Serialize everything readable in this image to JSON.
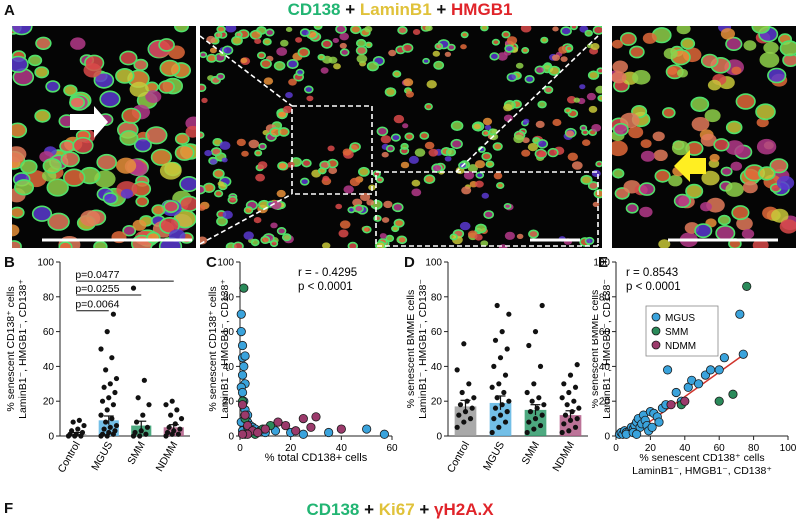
{
  "panel_labels": {
    "A": "A",
    "B": "B",
    "C": "C",
    "D": "D",
    "E": "E",
    "F": "F"
  },
  "title_A": [
    {
      "text": "CD138",
      "color": "#22b573"
    },
    {
      "text": " + ",
      "color": "#111111"
    },
    {
      "text": "LaminB1",
      "color": "#e0c23a"
    },
    {
      "text": " + ",
      "color": "#111111"
    },
    {
      "text": "HMGB1",
      "color": "#e0242a"
    }
  ],
  "title_F": [
    {
      "text": "CD138",
      "color": "#22b573"
    },
    {
      "text": " + ",
      "color": "#111111"
    },
    {
      "text": "Ki67",
      "color": "#e0c23a"
    },
    {
      "text": " + ",
      "color": "#111111"
    },
    {
      "text": "γH2A.X",
      "color": "#e0242a"
    }
  ],
  "colors": {
    "control": "#3a3a3a",
    "mgus": "#3aa3dc",
    "smm": "#2a8a5a",
    "ndmm": "#9b3a6b",
    "fit_line": "#d0342c",
    "bar_control": "#9a9a9a",
    "bar_mgus": "#5ab4e3",
    "bar_smm": "#2e9a6a",
    "bar_ndmm": "#b05a86"
  },
  "chart_data": [
    {
      "id": "B",
      "type": "bar",
      "categories": [
        "Control",
        "MGUS",
        "SMM",
        "NDMM"
      ],
      "means": [
        1,
        9,
        6,
        5
      ],
      "errors": [
        1,
        2.5,
        2.5,
        1.5
      ],
      "points": [
        [
          0,
          0,
          0,
          1,
          1,
          2,
          3,
          4,
          6,
          8,
          9
        ],
        [
          0,
          0,
          1,
          1,
          2,
          3,
          4,
          5,
          6,
          8,
          10,
          12,
          15,
          18,
          20,
          22,
          25,
          28,
          30,
          33,
          38,
          45,
          50,
          60,
          70
        ],
        [
          0,
          0,
          1,
          2,
          3,
          5,
          8,
          12,
          18,
          22,
          32,
          85
        ],
        [
          0,
          1,
          1,
          2,
          3,
          4,
          5,
          7,
          10,
          12,
          15,
          18,
          20
        ]
      ],
      "ylabel": [
        "% senescent CD138⁺ cells",
        "LaminB1⁻, HMGB1⁻, CD138⁺"
      ],
      "ylim": [
        0,
        100
      ],
      "yticks": [
        0,
        20,
        40,
        60,
        80,
        100
      ],
      "annotations": [
        "p=0.0064",
        "p=0.0255",
        "p=0.0477"
      ]
    },
    {
      "id": "C",
      "type": "scatter",
      "xlim": [
        0,
        60
      ],
      "ylim": [
        0,
        100
      ],
      "xticks": [
        0,
        20,
        40,
        60
      ],
      "yticks": [
        0,
        20,
        40,
        60,
        80,
        100
      ],
      "xlabel": "% total CD138+ cells",
      "ylabel": [
        "% senescent CD138⁺ cells",
        "LaminB1⁻, HMGB1⁻, CD138⁺"
      ],
      "stats": [
        "r = - 0.4295",
        "p < 0.0001"
      ],
      "series": [
        {
          "group": "mgus",
          "points": [
            [
              0.5,
              70
            ],
            [
              0.5,
              60
            ],
            [
              1,
              45
            ],
            [
              1.5,
              40
            ],
            [
              1,
              35
            ],
            [
              2,
              30
            ],
            [
              0.5,
              28
            ],
            [
              1,
              25
            ],
            [
              1.5,
              20
            ],
            [
              2,
              15
            ],
            [
              3,
              12
            ],
            [
              3,
              8
            ],
            [
              4,
              6
            ],
            [
              5,
              5
            ],
            [
              6,
              4
            ],
            [
              8,
              3
            ],
            [
              10,
              2
            ],
            [
              14,
              3
            ],
            [
              20,
              2
            ],
            [
              25,
              1
            ],
            [
              35,
              2
            ],
            [
              50,
              4
            ],
            [
              57,
              1
            ],
            [
              1,
              3
            ],
            [
              2,
              1
            ],
            [
              0.5,
              8
            ],
            [
              1,
              52
            ],
            [
              2,
              46
            ]
          ]
        },
        {
          "group": "smm",
          "points": [
            [
              1.5,
              85
            ],
            [
              1,
              20
            ],
            [
              2,
              10
            ],
            [
              3,
              5
            ],
            [
              4,
              2
            ],
            [
              6,
              1
            ],
            [
              9,
              4
            ],
            [
              12,
              6
            ]
          ]
        },
        {
          "group": "ndmm",
          "points": [
            [
              1,
              18
            ],
            [
              2,
              12
            ],
            [
              3,
              6
            ],
            [
              5,
              3
            ],
            [
              7,
              2
            ],
            [
              10,
              4
            ],
            [
              15,
              8
            ],
            [
              18,
              6
            ],
            [
              22,
              3
            ],
            [
              25,
              10
            ],
            [
              28,
              5
            ],
            [
              30,
              11
            ],
            [
              40,
              4
            ],
            [
              3,
              1
            ],
            [
              1,
              1
            ]
          ]
        }
      ]
    },
    {
      "id": "D",
      "type": "bar",
      "categories": [
        "Control",
        "MGUS",
        "SMM",
        "NDMM"
      ],
      "means": [
        17,
        19,
        15,
        12
      ],
      "errors": [
        3.5,
        4,
        3,
        2.5
      ],
      "points": [
        [
          5,
          8,
          10,
          12,
          14,
          16,
          18,
          20,
          22,
          25,
          30,
          38,
          53
        ],
        [
          2,
          5,
          8,
          10,
          12,
          14,
          16,
          18,
          20,
          22,
          25,
          28,
          30,
          35,
          40,
          45,
          50,
          55,
          60,
          70,
          75
        ],
        [
          2,
          4,
          6,
          8,
          10,
          12,
          14,
          16,
          18,
          20,
          22,
          25,
          30,
          40,
          52,
          60,
          75
        ],
        [
          2,
          3,
          5,
          7,
          9,
          10,
          12,
          14,
          16,
          18,
          20,
          22,
          25,
          28,
          30,
          35,
          41
        ]
      ],
      "ylabel": [
        "% senescent BMME cells",
        "LaminB1⁻, HMGB1⁻, CD138⁻"
      ],
      "ylim": [
        0,
        100
      ],
      "yticks": [
        0,
        20,
        40,
        60,
        80,
        100
      ]
    },
    {
      "id": "E",
      "type": "scatter",
      "xlim": [
        0,
        100
      ],
      "ylim": [
        0,
        100
      ],
      "xticks": [
        0,
        20,
        40,
        60,
        80,
        100
      ],
      "yticks": [
        0,
        20,
        40,
        60,
        80,
        100
      ],
      "xlabel": [
        "% senescent CD138⁺ cells",
        "LaminB1⁻, HMGB1⁻, CD138⁺"
      ],
      "ylabel": [
        "% senescent BMME cells",
        "LaminB1⁻, HMGB1⁻, CD138⁻"
      ],
      "stats": [
        "r = 0.8543",
        "p < 0.0001"
      ],
      "legend": [
        "MGUS",
        "SMM",
        "NDMM"
      ],
      "fit": [
        [
          8,
          0
        ],
        [
          76,
          48
        ]
      ],
      "series": [
        {
          "group": "mgus",
          "points": [
            [
              2,
              1
            ],
            [
              3,
              2
            ],
            [
              4,
              1
            ],
            [
              5,
              3
            ],
            [
              6,
              2
            ],
            [
              8,
              3
            ],
            [
              9,
              5
            ],
            [
              10,
              4
            ],
            [
              11,
              6
            ],
            [
              12,
              8
            ],
            [
              13,
              10
            ],
            [
              14,
              5
            ],
            [
              15,
              7
            ],
            [
              16,
              12
            ],
            [
              17,
              9
            ],
            [
              18,
              6
            ],
            [
              20,
              14
            ],
            [
              22,
              13
            ],
            [
              24,
              11
            ],
            [
              25,
              8
            ],
            [
              27,
              16
            ],
            [
              29,
              18
            ],
            [
              30,
              38
            ],
            [
              35,
              25
            ],
            [
              38,
              20
            ],
            [
              42,
              28
            ],
            [
              44,
              32
            ],
            [
              48,
              30
            ],
            [
              52,
              35
            ],
            [
              55,
              38
            ],
            [
              60,
              38
            ],
            [
              63,
              45
            ],
            [
              72,
              70
            ],
            [
              74,
              47
            ],
            [
              6,
              1
            ],
            [
              10,
              2
            ],
            [
              12,
              1
            ],
            [
              19,
              3
            ],
            [
              21,
              5
            ]
          ]
        },
        {
          "group": "smm",
          "points": [
            [
              76,
              86
            ],
            [
              60,
              20
            ],
            [
              68,
              24
            ],
            [
              38,
              18
            ]
          ]
        },
        {
          "group": "ndmm",
          "points": [
            [
              40,
              20
            ],
            [
              32,
              18
            ]
          ]
        }
      ]
    }
  ]
}
